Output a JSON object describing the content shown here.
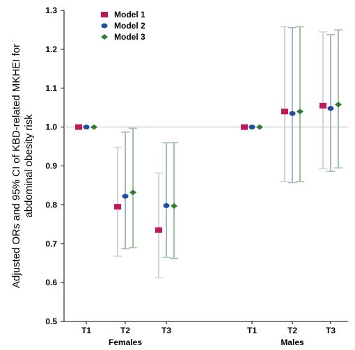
{
  "chart_data": {
    "type": "errorbar",
    "ylabel": "Adjusted ORs and 95% CI of KBD-related MKHEI for abdominal obesity risk",
    "ylim": [
      0.5,
      1.3
    ],
    "yticks": [
      "0.5",
      "0.6",
      "0.7",
      "0.8",
      "0.9",
      "1.0",
      "1.1",
      "1.2",
      "1.3"
    ],
    "reference_line": 1.0,
    "groups": [
      {
        "label": "Females",
        "categories": [
          "T1",
          "T2",
          "T3"
        ]
      },
      {
        "label": "Males",
        "categories": [
          "T1",
          "T2",
          "T3"
        ]
      }
    ],
    "series": [
      {
        "name": "Model 1",
        "color": "#c2185b",
        "whisker_color": "#d3d3d3",
        "marker": "square",
        "points": [
          {
            "group": "Females",
            "category": "T1",
            "or": 1.0,
            "lower": 1.0,
            "upper": 1.0
          },
          {
            "group": "Females",
            "category": "T2",
            "or": 0.795,
            "lower": 0.668,
            "upper": 0.948
          },
          {
            "group": "Females",
            "category": "T3",
            "or": 0.735,
            "lower": 0.613,
            "upper": 0.882
          },
          {
            "group": "Males",
            "category": "T1",
            "or": 1.0,
            "lower": 1.0,
            "upper": 1.0
          },
          {
            "group": "Males",
            "category": "T2",
            "or": 1.04,
            "lower": 0.86,
            "upper": 1.258
          },
          {
            "group": "Males",
            "category": "T3",
            "or": 1.055,
            "lower": 0.893,
            "upper": 1.245
          }
        ]
      },
      {
        "name": "Model 2",
        "color": "#1f4fa0",
        "whisker_color": "#9fb6cc",
        "marker": "circle",
        "points": [
          {
            "group": "Females",
            "category": "T1",
            "or": 1.0,
            "lower": 1.0,
            "upper": 1.0
          },
          {
            "group": "Females",
            "category": "T2",
            "or": 0.822,
            "lower": 0.687,
            "upper": 0.987
          },
          {
            "group": "Females",
            "category": "T3",
            "or": 0.798,
            "lower": 0.665,
            "upper": 0.96
          },
          {
            "group": "Males",
            "category": "T1",
            "or": 1.0,
            "lower": 1.0,
            "upper": 1.0
          },
          {
            "group": "Males",
            "category": "T2",
            "or": 1.035,
            "lower": 0.857,
            "upper": 1.256
          },
          {
            "group": "Males",
            "category": "T3",
            "or": 1.048,
            "lower": 0.886,
            "upper": 1.238
          }
        ]
      },
      {
        "name": "Model 3",
        "color": "#2e7d32",
        "whisker_color": "#9dc39a",
        "marker": "diamond",
        "points": [
          {
            "group": "Females",
            "category": "T1",
            "or": 1.0,
            "lower": 1.0,
            "upper": 1.0
          },
          {
            "group": "Females",
            "category": "T2",
            "or": 0.832,
            "lower": 0.69,
            "upper": 0.997
          },
          {
            "group": "Females",
            "category": "T3",
            "or": 0.797,
            "lower": 0.662,
            "upper": 0.96
          },
          {
            "group": "Males",
            "category": "T1",
            "or": 1.0,
            "lower": 1.0,
            "upper": 1.0
          },
          {
            "group": "Males",
            "category": "T2",
            "or": 1.04,
            "lower": 0.86,
            "upper": 1.258
          },
          {
            "group": "Males",
            "category": "T3",
            "or": 1.058,
            "lower": 0.895,
            "upper": 1.25
          }
        ]
      }
    ]
  }
}
